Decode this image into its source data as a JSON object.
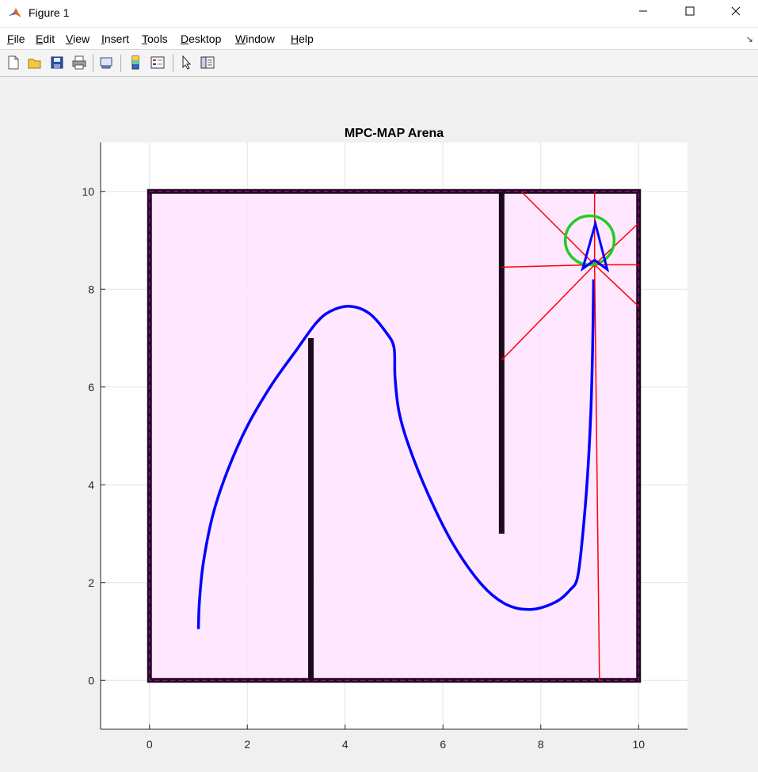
{
  "window": {
    "title": "Figure 1",
    "minimize_icon": "minimize-icon",
    "maximize_icon": "maximize-icon",
    "close_icon": "close-icon"
  },
  "menu": {
    "items": [
      {
        "underline": "F",
        "rest": "ile"
      },
      {
        "underline": "E",
        "rest": "dit"
      },
      {
        "underline": "V",
        "rest": "iew"
      },
      {
        "underline": "I",
        "rest": "nsert"
      },
      {
        "underline": "T",
        "rest": "ools"
      },
      {
        "underline": "D",
        "rest": "esktop"
      },
      {
        "underline": "W",
        "rest": "indow"
      },
      {
        "underline": "H",
        "rest": "elp"
      }
    ]
  },
  "toolbar": {
    "icons": [
      "new-figure-icon",
      "open-file-icon",
      "save-icon",
      "print-icon",
      "link-plot-icon",
      "colorbar-icon",
      "legend-icon",
      "pointer-icon",
      "property-inspector-icon"
    ]
  },
  "colors": {
    "arena_fill": "#ffe3ff",
    "wall": "#1e0a1e",
    "boundary_dash": "#b000b0",
    "path": "#0000ff",
    "rays": "#ff0000",
    "goal": "#22cc22",
    "plot_bg": "#ffffff",
    "grid": "#e3e3e3"
  },
  "chart_data": {
    "type": "line",
    "title": "MPC-MAP Arena",
    "xlabel": "",
    "ylabel": "",
    "xlim": [
      -1,
      11
    ],
    "ylim": [
      -1,
      11
    ],
    "xticks": [
      0,
      2,
      4,
      6,
      8,
      10
    ],
    "yticks": [
      0,
      2,
      4,
      6,
      8,
      10
    ],
    "grid": true,
    "arena": {
      "x": [
        0,
        10
      ],
      "y": [
        0,
        10
      ]
    },
    "walls": [
      {
        "x": [
          3.3,
          3.3
        ],
        "y": [
          0,
          7
        ]
      },
      {
        "x": [
          7.2,
          7.2
        ],
        "y": [
          3,
          10
        ]
      }
    ],
    "path": {
      "x": [
        1.0,
        1.02,
        1.1,
        1.3,
        1.6,
        2.0,
        2.5,
        3.0,
        3.4,
        3.7,
        4.1,
        4.5,
        4.85,
        5.0,
        5.02,
        5.1,
        5.3,
        5.7,
        6.2,
        6.8,
        7.3,
        7.8,
        8.3,
        8.6,
        8.75,
        8.85,
        8.95,
        9.02,
        9.06,
        9.08
      ],
      "y": [
        1.05,
        1.6,
        2.4,
        3.4,
        4.3,
        5.2,
        6.05,
        6.75,
        7.3,
        7.55,
        7.65,
        7.5,
        7.1,
        6.8,
        6.2,
        5.5,
        4.8,
        3.8,
        2.8,
        1.95,
        1.55,
        1.45,
        1.6,
        1.85,
        2.1,
        2.9,
        4.1,
        5.4,
        6.8,
        8.2
      ]
    },
    "robot": {
      "x": 9.1,
      "y": 8.5,
      "heading_deg": 90
    },
    "goal": {
      "x": 9.0,
      "y": 9.0,
      "radius": 0.5
    },
    "rays": [
      {
        "x": 9.2,
        "y": 0.0
      },
      {
        "x": 10.0,
        "y": 7.65
      },
      {
        "x": 10.0,
        "y": 8.5
      },
      {
        "x": 10.0,
        "y": 9.35
      },
      {
        "x": 9.1,
        "y": 10.0
      },
      {
        "x": 7.6,
        "y": 10.0
      },
      {
        "x": 7.2,
        "y": 8.45
      },
      {
        "x": 7.2,
        "y": 6.55
      }
    ]
  }
}
